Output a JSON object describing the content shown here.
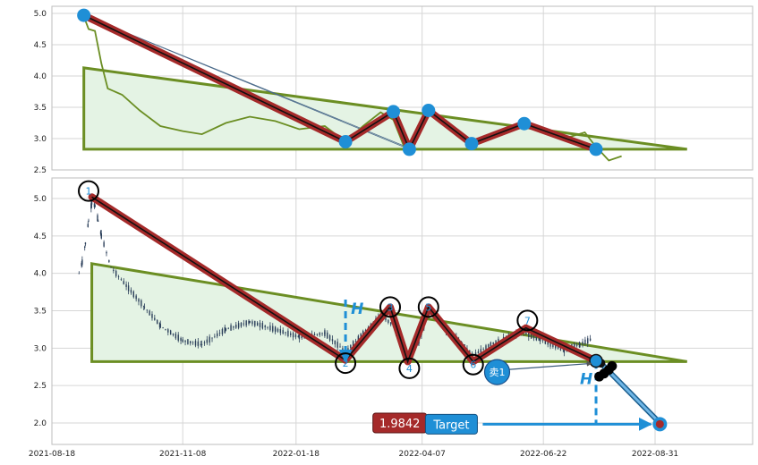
{
  "chart_data": [
    {
      "type": "line",
      "panel": "top",
      "ylim": [
        2.5,
        5.05
      ],
      "y_ticks": [
        "5.0",
        "4.5",
        "4.0",
        "3.5",
        "3.0",
        "2.5"
      ],
      "grid": true,
      "price_series": [
        {
          "date": "2021-09-07",
          "value": 4.95
        },
        {
          "date": "2021-09-10",
          "value": 4.75
        },
        {
          "date": "2021-09-14",
          "value": 4.72
        },
        {
          "date": "2021-09-18",
          "value": 4.2
        },
        {
          "date": "2021-09-22",
          "value": 3.8
        },
        {
          "date": "2021-10-01",
          "value": 3.7
        },
        {
          "date": "2021-10-12",
          "value": 3.45
        },
        {
          "date": "2021-10-25",
          "value": 3.2
        },
        {
          "date": "2021-11-08",
          "value": 3.12
        },
        {
          "date": "2021-11-20",
          "value": 3.07
        },
        {
          "date": "2021-12-05",
          "value": 3.25
        },
        {
          "date": "2021-12-20",
          "value": 3.35
        },
        {
          "date": "2022-01-05",
          "value": 3.28
        },
        {
          "date": "2022-01-20",
          "value": 3.15
        },
        {
          "date": "2022-02-05",
          "value": 3.2
        },
        {
          "date": "2022-02-18",
          "value": 2.95
        },
        {
          "date": "2022-03-01",
          "value": 3.2
        },
        {
          "date": "2022-03-12",
          "value": 3.42
        },
        {
          "date": "2022-03-20",
          "value": 3.3
        },
        {
          "date": "2022-03-27",
          "value": 2.85
        },
        {
          "date": "2022-04-03",
          "value": 3.05
        },
        {
          "date": "2022-04-11",
          "value": 3.45
        },
        {
          "date": "2022-04-20",
          "value": 3.3
        },
        {
          "date": "2022-05-01",
          "value": 3.1
        },
        {
          "date": "2022-05-10",
          "value": 2.92
        },
        {
          "date": "2022-05-20",
          "value": 3.05
        },
        {
          "date": "2022-06-05",
          "value": 3.22
        },
        {
          "date": "2022-06-20",
          "value": 3.12
        },
        {
          "date": "2022-07-05",
          "value": 3.0
        },
        {
          "date": "2022-07-18",
          "value": 3.1
        },
        {
          "date": "2022-07-24",
          "value": 2.9
        },
        {
          "date": "2022-08-02",
          "value": 2.65
        },
        {
          "date": "2022-08-10",
          "value": 2.72
        }
      ],
      "zigzag": [
        {
          "date": "2021-09-07",
          "value": 4.97
        },
        {
          "date": "2022-02-18",
          "value": 2.95
        },
        {
          "date": "2022-03-20",
          "value": 3.43
        },
        {
          "date": "2022-03-30",
          "value": 2.83
        },
        {
          "date": "2022-04-11",
          "value": 3.45
        },
        {
          "date": "2022-05-08",
          "value": 2.92
        },
        {
          "date": "2022-06-10",
          "value": 3.24
        },
        {
          "date": "2022-07-25",
          "value": 2.83
        }
      ],
      "triangle": [
        {
          "date": "2021-09-07",
          "value": 4.13
        },
        {
          "date": "2022-09-20",
          "value": 2.83
        },
        {
          "date": "2021-09-07",
          "value": 2.83
        }
      ],
      "guide_lines": [
        [
          {
            "date": "2021-09-07",
            "value": 4.97
          },
          {
            "date": "2022-03-30",
            "value": 2.83
          }
        ],
        [
          {
            "date": "2021-09-07",
            "value": 4.97
          },
          {
            "date": "2022-03-28",
            "value": 2.87
          }
        ]
      ]
    },
    {
      "type": "candlestick",
      "panel": "bottom",
      "ylim": [
        1.7,
        5.25
      ],
      "y_ticks": [
        "5.0",
        "4.5",
        "4.0",
        "3.5",
        "3.0",
        "2.5",
        "2.0"
      ],
      "x_ticks": [
        "2021-08-18",
        "2021-11-08",
        "2022-01-18",
        "2022-04-07",
        "2022-06-22",
        "2022-08-31"
      ],
      "grid": true,
      "price_series": [
        {
          "date": "2021-09-04",
          "value": 4.0
        },
        {
          "date": "2021-09-06",
          "value": 4.15
        },
        {
          "date": "2021-09-08",
          "value": 4.4
        },
        {
          "date": "2021-09-10",
          "value": 4.7
        },
        {
          "date": "2021-09-12",
          "value": 4.95
        },
        {
          "date": "2021-09-14",
          "value": 4.9
        },
        {
          "date": "2021-09-16",
          "value": 4.7
        },
        {
          "date": "2021-09-18",
          "value": 4.5
        },
        {
          "date": "2021-09-24",
          "value": 4.08
        },
        {
          "date": "2021-10-05",
          "value": 3.8
        },
        {
          "date": "2021-10-15",
          "value": 3.55
        },
        {
          "date": "2021-10-25",
          "value": 3.3
        },
        {
          "date": "2021-11-08",
          "value": 3.1
        },
        {
          "date": "2021-11-20",
          "value": 3.05
        },
        {
          "date": "2021-12-05",
          "value": 3.25
        },
        {
          "date": "2021-12-20",
          "value": 3.35
        },
        {
          "date": "2022-01-05",
          "value": 3.25
        },
        {
          "date": "2022-01-20",
          "value": 3.15
        },
        {
          "date": "2022-02-05",
          "value": 3.2
        },
        {
          "date": "2022-02-18",
          "value": 2.95
        },
        {
          "date": "2022-03-01",
          "value": 3.2
        },
        {
          "date": "2022-03-12",
          "value": 3.45
        },
        {
          "date": "2022-03-20",
          "value": 3.3
        },
        {
          "date": "2022-03-29",
          "value": 2.85
        },
        {
          "date": "2022-04-05",
          "value": 3.1
        },
        {
          "date": "2022-04-12",
          "value": 3.5
        },
        {
          "date": "2022-04-22",
          "value": 3.25
        },
        {
          "date": "2022-05-02",
          "value": 3.05
        },
        {
          "date": "2022-05-09",
          "value": 2.9
        },
        {
          "date": "2022-05-20",
          "value": 3.05
        },
        {
          "date": "2022-06-08",
          "value": 3.22
        },
        {
          "date": "2022-06-20",
          "value": 3.12
        },
        {
          "date": "2022-07-05",
          "value": 2.98
        },
        {
          "date": "2022-07-15",
          "value": 3.05
        },
        {
          "date": "2022-07-22",
          "value": 3.12
        }
      ],
      "zigzag": [
        {
          "date": "2021-09-12",
          "value": 5.02
        },
        {
          "date": "2022-02-18",
          "value": 2.84
        },
        {
          "date": "2022-03-18",
          "value": 3.55
        },
        {
          "date": "2022-03-29",
          "value": 2.82
        },
        {
          "date": "2022-04-11",
          "value": 3.55
        },
        {
          "date": "2022-05-09",
          "value": 2.82
        },
        {
          "date": "2022-06-11",
          "value": 3.27
        },
        {
          "date": "2022-07-25",
          "value": 2.83
        }
      ],
      "pivot_labels": [
        {
          "label": "1",
          "date": "2021-09-10",
          "value": 5.1
        },
        {
          "label": "2",
          "date": "2022-02-18",
          "value": 2.8
        },
        {
          "label": "3",
          "date": "2022-03-18",
          "value": 3.55
        },
        {
          "label": "4",
          "date": "2022-03-30",
          "value": 2.73
        },
        {
          "label": "5",
          "date": "2022-04-11",
          "value": 3.55
        },
        {
          "label": "6",
          "date": "2022-05-09",
          "value": 2.78
        },
        {
          "label": "7",
          "date": "2022-06-12",
          "value": 3.37
        }
      ],
      "triangle": [
        {
          "date": "2021-09-12",
          "value": 4.13
        },
        {
          "date": "2022-09-20",
          "value": 2.82
        },
        {
          "date": "2021-09-12",
          "value": 2.82
        }
      ],
      "height_marker": {
        "label": "H",
        "date": "2022-02-18",
        "from": 2.82,
        "to": 3.65
      },
      "breakout_height_marker": {
        "label": "H",
        "date": "2022-07-25",
        "from": 2.82,
        "to": 2.0
      },
      "sell_signal": {
        "label": "卖1",
        "date": "2022-05-24",
        "value": 2.68,
        "target_date": "2022-07-25",
        "target_value": 2.82
      },
      "breakout_path": [
        {
          "date": "2022-07-28",
          "value": 2.8
        },
        {
          "date": "2022-09-03",
          "value": 2.0
        }
      ],
      "black_blob": [
        {
          "date": "2022-07-27",
          "value": 2.62
        },
        {
          "date": "2022-07-30",
          "value": 2.66
        },
        {
          "date": "2022-08-02",
          "value": 2.71
        },
        {
          "date": "2022-08-04",
          "value": 2.76
        }
      ],
      "target_price_label": "1.9842",
      "target_label": "Target",
      "target": {
        "date": "2022-09-03",
        "value": 1.9842
      },
      "target_arrow_start": {
        "date": "2022-05-15",
        "value": 2.0
      },
      "price_label_position": {
        "date": "2022-03-24",
        "value": 2.0
      }
    }
  ],
  "colors": {
    "price_top": "#6b8e23",
    "triangle_stroke": "#6b8e23",
    "triangle_fill": "#e4f3e4",
    "zigzag_outer": "#a52a2a",
    "zigzag_inner": "#111111",
    "pivot_dot": "#1f8fd6",
    "marker_blue": "#1f8fd6",
    "sell_fill": "#1f8fd6",
    "price_label_bg": "#a52a2a",
    "target_bg": "#1f8fd6",
    "target_dot": "#a52a2a",
    "candle": "#2b3f5a"
  }
}
